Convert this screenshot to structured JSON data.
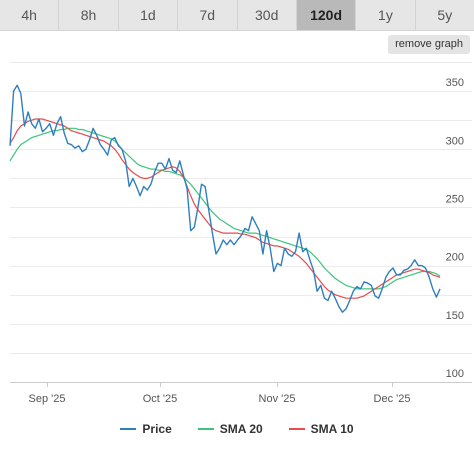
{
  "timeframes": {
    "tabs": [
      "4h",
      "8h",
      "1d",
      "7d",
      "30d",
      "120d",
      "1y",
      "5y"
    ],
    "active": "120d"
  },
  "remove_graph_label": "remove graph",
  "chart_data": {
    "type": "line",
    "x_labels": [
      "Sep '25",
      "Oct '25",
      "Nov '25",
      "Dec '25"
    ],
    "y_ticks": [
      100,
      150,
      200,
      250,
      300,
      350
    ],
    "ylim": [
      100,
      375
    ],
    "grid": true,
    "y_axis_side": "right",
    "legend_placement": "bottom",
    "series": [
      {
        "name": "Price",
        "color": "#2f7ec0",
        "values": [
          303,
          350,
          355,
          348,
          320,
          332,
          322,
          318,
          326,
          315,
          318,
          322,
          312,
          322,
          328,
          314,
          305,
          304,
          301,
          303,
          298,
          300,
          308,
          318,
          312,
          304,
          300,
          295,
          308,
          310,
          303,
          300,
          290,
          268,
          275,
          268,
          260,
          268,
          265,
          270,
          280,
          288,
          288,
          283,
          292,
          282,
          280,
          290,
          278,
          266,
          230,
          233,
          250,
          270,
          268,
          248,
          228,
          210,
          215,
          222,
          218,
          222,
          218,
          222,
          226,
          232,
          230,
          242,
          236,
          230,
          210,
          230,
          215,
          195,
          202,
          200,
          215,
          210,
          208,
          212,
          228,
          212,
          215,
          205,
          196,
          178,
          183,
          172,
          170,
          178,
          172,
          165,
          160,
          163,
          170,
          178,
          182,
          180,
          186,
          185,
          183,
          174,
          172,
          180,
          190,
          195,
          198,
          192,
          192,
          196,
          197,
          200,
          205,
          200,
          200,
          198,
          190,
          180,
          173,
          180
        ]
      },
      {
        "name": "SMA 20",
        "color": "#3cc47c",
        "values": [
          290,
          295,
          300,
          304,
          306,
          308,
          310,
          311,
          312,
          313,
          314,
          315,
          316,
          316,
          317,
          317,
          318,
          318,
          318,
          317,
          317,
          316,
          315,
          314,
          313,
          312,
          311,
          310,
          309,
          307,
          304,
          300,
          297,
          294,
          291,
          288,
          286,
          285,
          284,
          283,
          283,
          282,
          282,
          281,
          281,
          280,
          279,
          278,
          276,
          273,
          270,
          266,
          262,
          258,
          254,
          250,
          246,
          243,
          240,
          238,
          236,
          234,
          232,
          231,
          230,
          229,
          228,
          228,
          228,
          227,
          226,
          225,
          224,
          223,
          222,
          221,
          220,
          219,
          218,
          217,
          216,
          215,
          214,
          212,
          209,
          206,
          202,
          198,
          195,
          192,
          189,
          187,
          185,
          183,
          182,
          181,
          180,
          180,
          180,
          180,
          180,
          180,
          180,
          181,
          182,
          184,
          186,
          188,
          189,
          190,
          191,
          192,
          193,
          194,
          195,
          195,
          195,
          194,
          193,
          191
        ]
      },
      {
        "name": "SMA 10",
        "color": "#e84b4b",
        "values": [
          305,
          310,
          316,
          320,
          322,
          324,
          325,
          326,
          326,
          326,
          325,
          324,
          323,
          322,
          321,
          320,
          318,
          316,
          315,
          314,
          313,
          312,
          311,
          310,
          309,
          308,
          307,
          305,
          303,
          300,
          296,
          291,
          287,
          283,
          280,
          278,
          276,
          275,
          275,
          276,
          278,
          280,
          282,
          283,
          284,
          285,
          284,
          281,
          276,
          268,
          260,
          253,
          248,
          244,
          240,
          236,
          232,
          230,
          229,
          228,
          228,
          228,
          228,
          228,
          227,
          227,
          226,
          225,
          224,
          222,
          220,
          219,
          218,
          217,
          217,
          216,
          215,
          214,
          212,
          210,
          208,
          205,
          202,
          198,
          194,
          190,
          186,
          182,
          179,
          177,
          175,
          174,
          173,
          172,
          172,
          172,
          172,
          173,
          174,
          176,
          178,
          180,
          182,
          184,
          186,
          188,
          190,
          192,
          193,
          194,
          195,
          196,
          197,
          197,
          196,
          195,
          194,
          192,
          191,
          190
        ]
      }
    ]
  }
}
